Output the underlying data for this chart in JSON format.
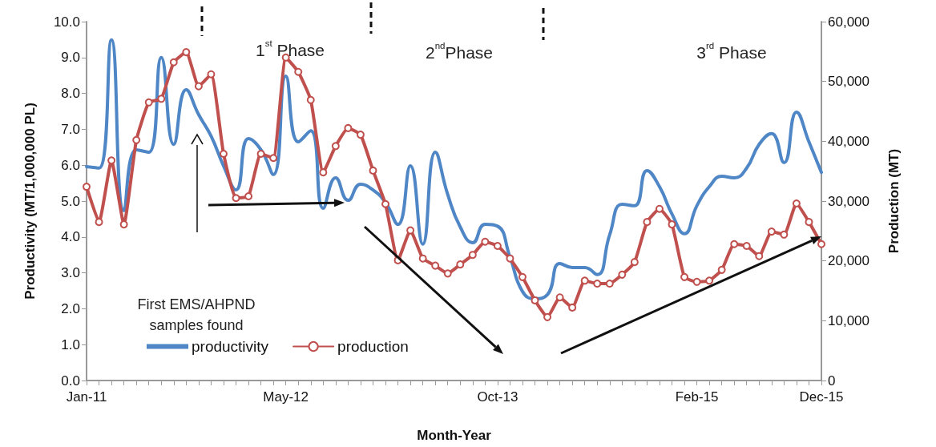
{
  "chart_data": {
    "type": "line",
    "xlabel": "Month-Year",
    "ylabel": "Productivity (MT/1,000,000 PL)",
    "y2label": "Production (MT)",
    "categories": [
      "Jan-11",
      null,
      null,
      null,
      null,
      null,
      null,
      null,
      null,
      null,
      null,
      null,
      null,
      null,
      null,
      null,
      "May-12",
      null,
      null,
      null,
      null,
      null,
      null,
      null,
      null,
      null,
      null,
      null,
      null,
      null,
      null,
      null,
      null,
      "Oct-13",
      null,
      null,
      null,
      null,
      null,
      null,
      null,
      null,
      null,
      null,
      null,
      null,
      null,
      null,
      null,
      "Feb-15",
      null,
      null,
      null,
      null,
      null,
      null,
      null,
      null,
      null,
      "Dec-15"
    ],
    "series": [
      {
        "name": "productivity",
        "color": "#4f86c6",
        "marker": "none",
        "values": [
          5.96,
          5.92,
          9.49,
          4.73,
          6.43,
          6.36,
          9.0,
          6.58,
          8.1,
          7.41,
          6.81,
          5.98,
          5.31,
          6.74,
          6.43,
          5.74,
          8.48,
          6.65,
          6.96,
          4.8,
          5.65,
          5.02,
          5.47,
          5.31,
          4.96,
          4.35,
          5.98,
          3.8,
          6.36,
          5.18,
          4.28,
          3.84,
          4.35,
          4.3,
          3.44,
          2.48,
          2.28,
          2.39,
          3.26,
          3.15,
          3.15,
          2.95,
          4.06,
          4.91,
          4.87,
          5.85,
          5.4,
          4.64,
          4.09,
          4.87,
          5.4,
          5.69,
          5.65,
          5.92,
          6.58,
          6.88,
          6.07,
          7.48,
          6.65,
          5.8
        ]
      },
      {
        "name": "production",
        "color": "#c0504d",
        "marker": "circle",
        "axis": "y2",
        "values": [
          32400,
          26500,
          36800,
          26100,
          40200,
          46500,
          47100,
          53200,
          54900,
          49200,
          51200,
          37900,
          30500,
          30800,
          37900,
          37200,
          54000,
          51600,
          46900,
          34800,
          39200,
          42200,
          41100,
          35100,
          29500,
          20100,
          25100,
          20400,
          19200,
          17900,
          19400,
          21000,
          23200,
          22500,
          20400,
          17300,
          13400,
          10600,
          13900,
          12200,
          16700,
          16200,
          16200,
          17700,
          19800,
          26500,
          28700,
          26100,
          17300,
          16500,
          16700,
          18500,
          22800,
          22500,
          20800,
          24900,
          24400,
          29600,
          26500,
          22800
        ]
      }
    ],
    "ylim": [
      0,
      10
    ],
    "yticks": [
      {
        "value": 0,
        "label": "0.0"
      },
      {
        "value": 1,
        "label": "1.0"
      },
      {
        "value": 2,
        "label": "2.0"
      },
      {
        "value": 3,
        "label": "3.0"
      },
      {
        "value": 4,
        "label": "4.0"
      },
      {
        "value": 5,
        "label": "5.0"
      },
      {
        "value": 6,
        "label": "6.0"
      },
      {
        "value": 7,
        "label": "7.0"
      },
      {
        "value": 8,
        "label": "8.0"
      },
      {
        "value": 9,
        "label": "9.0"
      },
      {
        "value": 10,
        "label": "10.0"
      }
    ],
    "y2lim": [
      0,
      60000
    ],
    "y2ticks": [
      0,
      {
        "value": 10000,
        "label": "10,000"
      },
      {
        "value": 20000,
        "label": "20,000"
      },
      {
        "value": 30000,
        "label": "30,000"
      },
      {
        "value": 40000,
        "label": "40,000"
      },
      {
        "value": 50000,
        "label": "50,000"
      },
      {
        "value": 60000,
        "label": "60,000"
      }
    ],
    "annotations": [
      "1$^{st}$ Phase",
      "2$^{nd}$Phase",
      "3$^{rd}$ Phase",
      "First EMS/AHPND\nsamples found"
    ],
    "legend": "bottom left",
    "grid": false
  }
}
